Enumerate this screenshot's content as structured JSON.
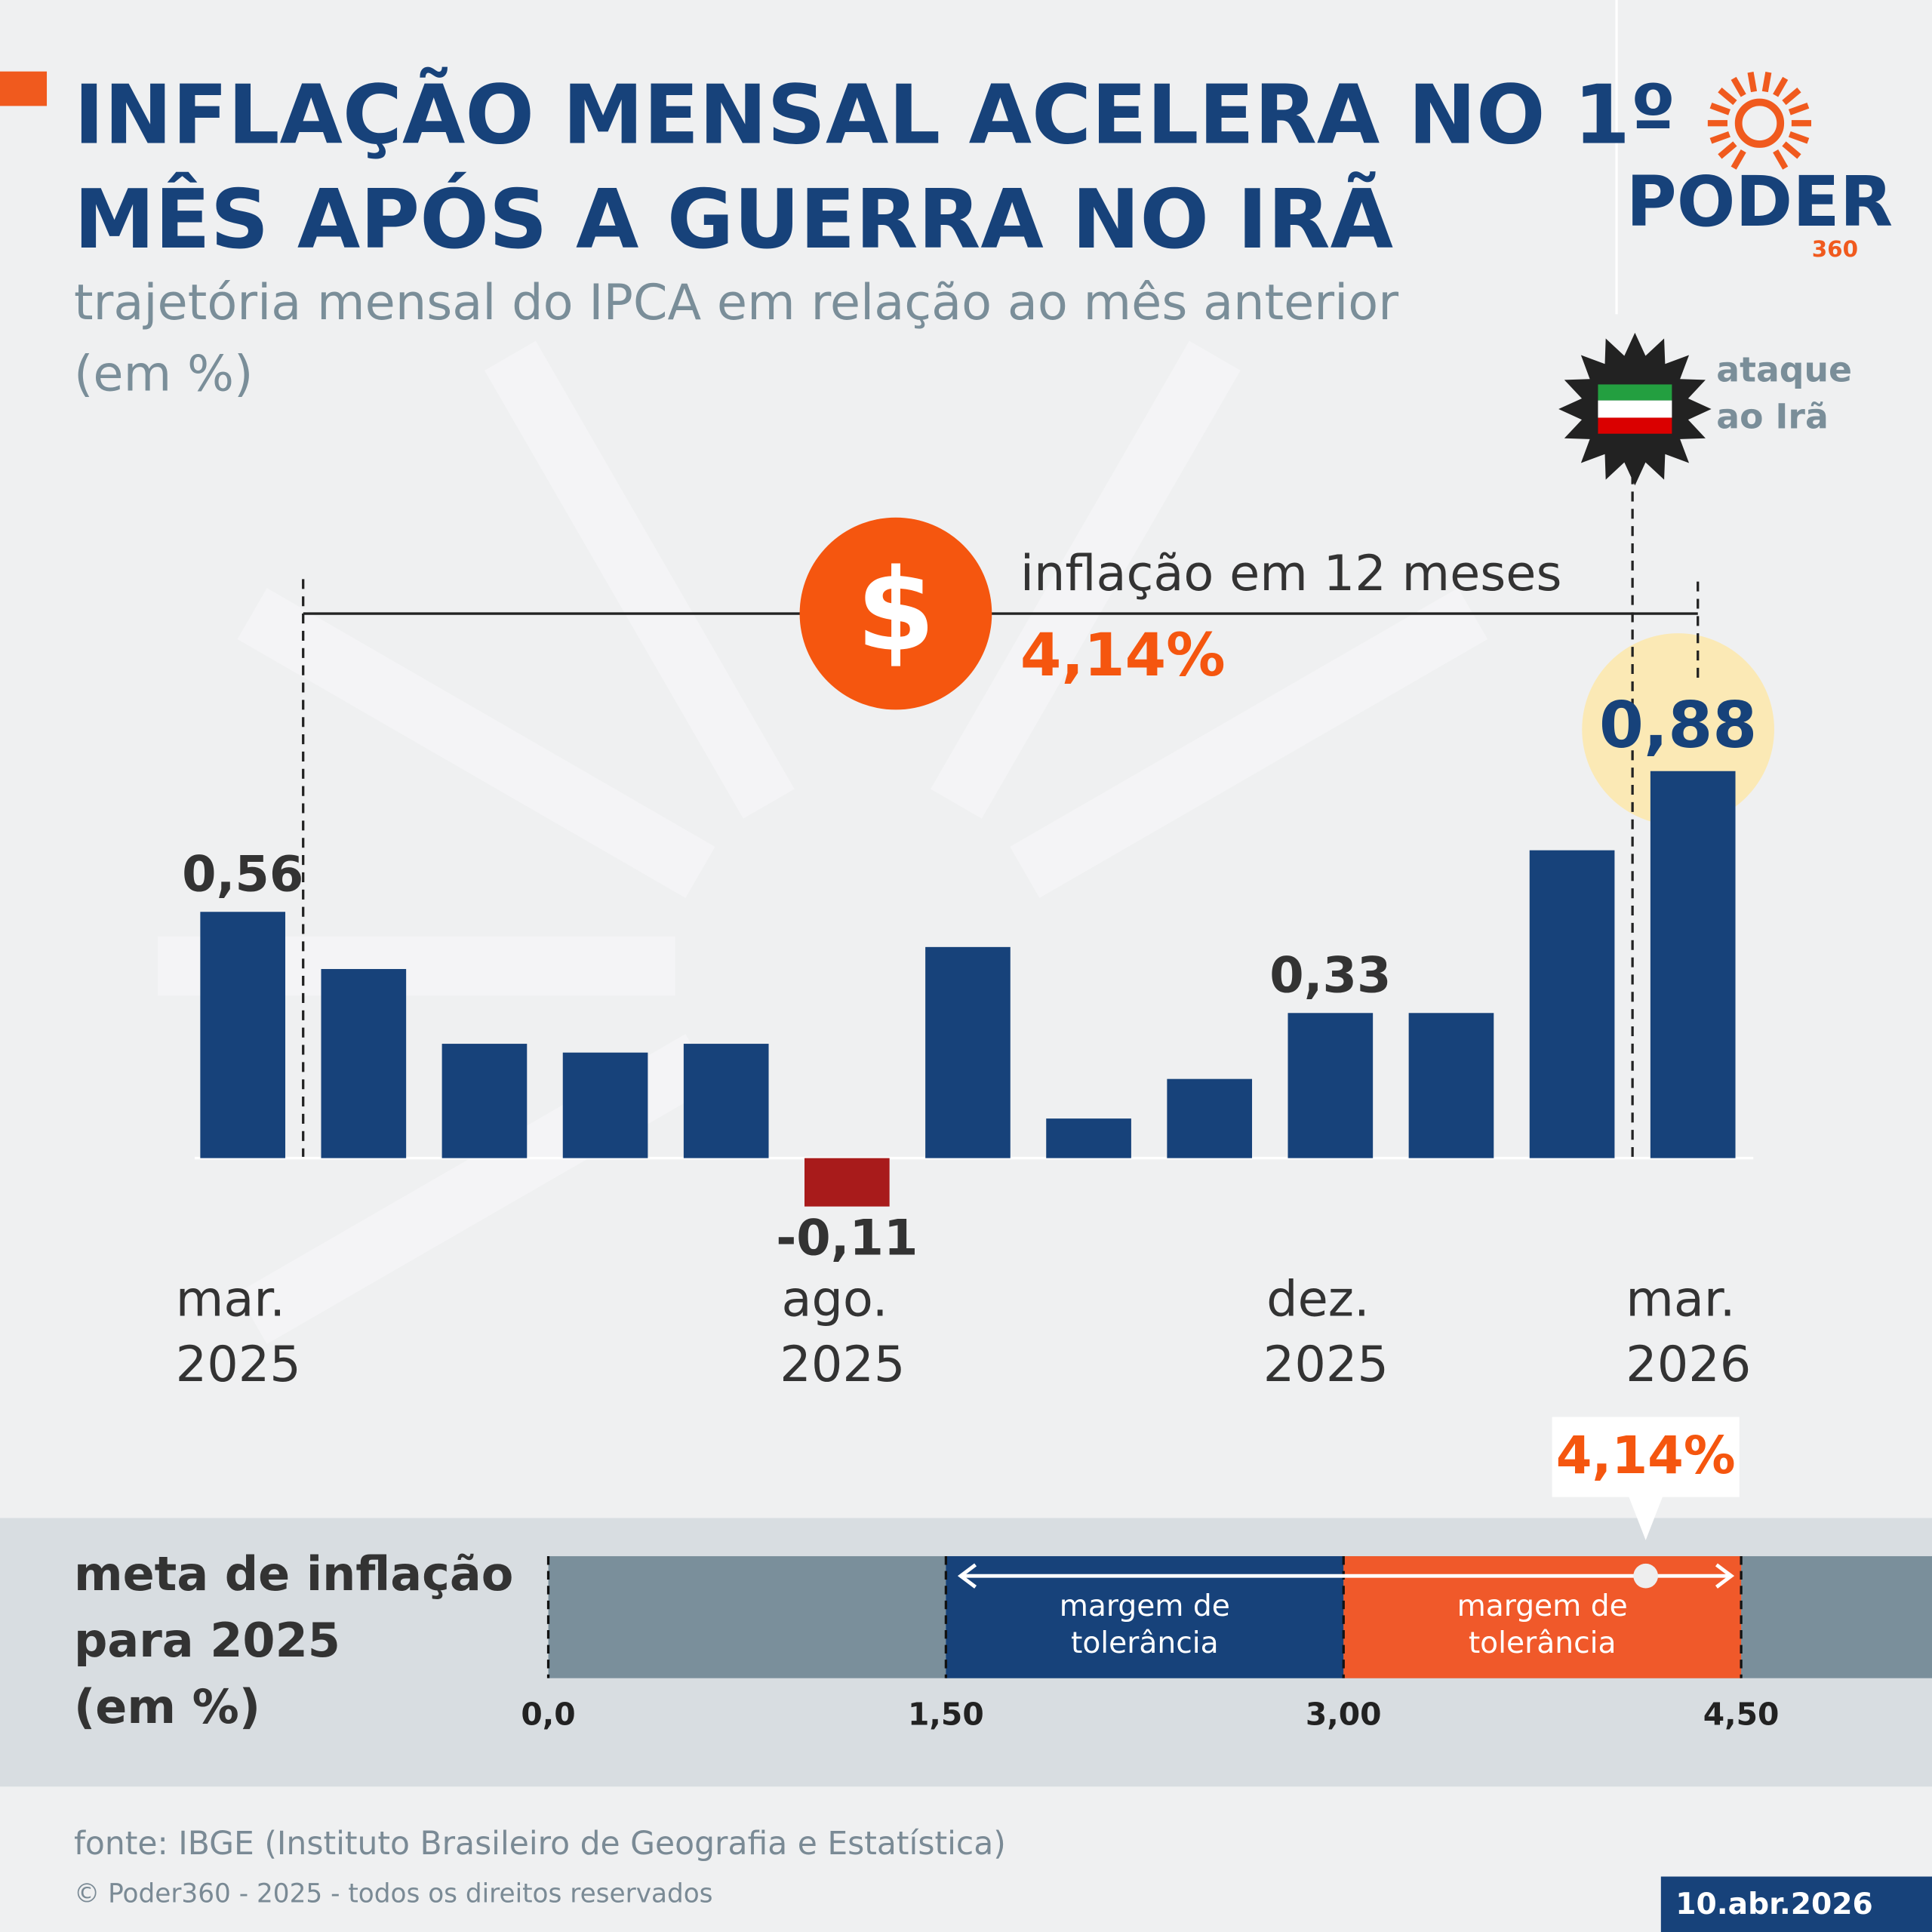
{
  "chart_data": [
    {
      "type": "bar",
      "title": [
        "INFLAÇÃO MENSAL ACELERA NO 1º",
        "MÊS APÓS A GUERRA NO IRÃ"
      ],
      "subtitle": [
        "trajetória mensal do IPCA em relação ao mês anterior",
        "(em %)"
      ],
      "categories": [
        "mar. 2025",
        null,
        null,
        null,
        null,
        "ago. 2025",
        null,
        null,
        null,
        "dez. 2025",
        null,
        null,
        "mar. 2026"
      ],
      "values": [
        0.56,
        0.43,
        0.26,
        0.24,
        0.26,
        -0.11,
        0.48,
        0.09,
        0.18,
        0.33,
        0.33,
        0.7,
        0.88
      ],
      "value_labels": [
        "0,56",
        null,
        null,
        null,
        null,
        "-0,11",
        null,
        null,
        null,
        "0,33",
        null,
        null,
        "0,88"
      ],
      "color": "#17427a",
      "negative_color": "#a81b1b",
      "highlight": 12,
      "ylim": [
        -0.3,
        1.0
      ],
      "annotation": {
        "text": "inflação em 12 meses",
        "value_label": "4,14%"
      },
      "event": {
        "label": [
          "ataque",
          "ao Irã"
        ]
      }
    },
    {
      "type": "range",
      "title": [
        "meta de inflação",
        "para 2025",
        "(em %)"
      ],
      "color": "#7a8f9b",
      "xlim": [
        0,
        5.22
      ],
      "xticks": [
        {
          "value": 0,
          "label": "0,0"
        },
        {
          "value": 1.5,
          "label": "1,50"
        },
        {
          "value": 3,
          "label": "3,00"
        },
        {
          "value": 4.5,
          "label": "4,50"
        }
      ],
      "bands": [
        {
          "from": 1.5,
          "to": 3,
          "color": "#17427a",
          "label": [
            "margem de",
            "tolerância"
          ]
        },
        {
          "from": 3,
          "to": 4.5,
          "color": "#f0592a",
          "label": [
            "margem de",
            "tolerância"
          ]
        }
      ],
      "marker": {
        "value": 4.14,
        "label": "4,14%"
      }
    }
  ],
  "logo": {
    "name": "PODER",
    "suffix": "360"
  },
  "footer": {
    "source": "fonte: IBGE (Instituto Brasileiro de Geografia e Estatística)",
    "copyright": "© Poder360 - 2025 - todos os direitos reservados",
    "date": "10.abr.2026"
  }
}
